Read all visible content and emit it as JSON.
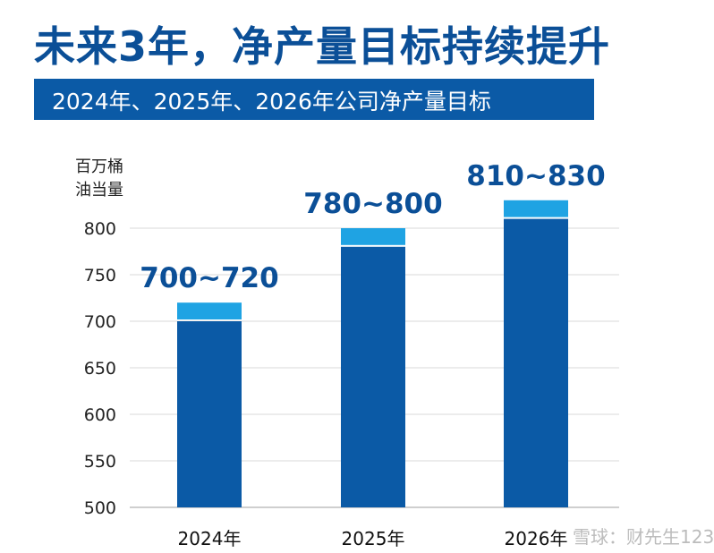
{
  "header": {
    "title": "未来3年，净产量目标持续提升",
    "subtitle": "2024年、2025年、2026年公司净产量目标"
  },
  "watermark": "雪球：财先生123",
  "colors": {
    "title": "#0b4f97",
    "banner": "#0b5aa6",
    "bar_base": "#0b5aa6",
    "bar_range": "#1fa3e3",
    "range_label": "#0b4f97"
  },
  "chart_data": {
    "type": "bar",
    "ylabel_lines": [
      "百万桶",
      "油当量"
    ],
    "categories": [
      "2024年",
      "2025年",
      "2026年"
    ],
    "series": [
      {
        "values": [
          700,
          780,
          810
        ]
      },
      {
        "values": [
          720,
          800,
          830
        ]
      }
    ],
    "range_labels": [
      "700~720",
      "780~800",
      "810~830"
    ],
    "yticks": [
      500,
      550,
      600,
      650,
      700,
      750,
      800
    ],
    "ylim": [
      500,
      850
    ],
    "grid": true
  }
}
